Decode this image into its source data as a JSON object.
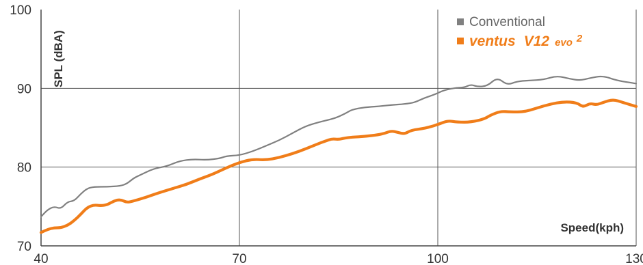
{
  "chart_data": {
    "type": "line",
    "xlabel": "Speed(kph)",
    "ylabel": "SPL (dBA)",
    "xlim": [
      40,
      130
    ],
    "ylim": [
      70,
      100
    ],
    "x_ticks": [
      "40",
      "70",
      "100",
      "130"
    ],
    "y_ticks": [
      "70",
      "80",
      "90",
      "100"
    ],
    "grid": true,
    "legend_position": "top-right",
    "series": [
      {
        "name": "Conventional",
        "color": "#808080",
        "points": [
          [
            40,
            73.7
          ],
          [
            41,
            74.6
          ],
          [
            42,
            75.0
          ],
          [
            43,
            74.7
          ],
          [
            44,
            75.6
          ],
          [
            45,
            75.7
          ],
          [
            46,
            76.6
          ],
          [
            47,
            77.3
          ],
          [
            48,
            77.5
          ],
          [
            50,
            77.5
          ],
          [
            52,
            77.6
          ],
          [
            53,
            77.9
          ],
          [
            54,
            78.6
          ],
          [
            55,
            79.0
          ],
          [
            57,
            79.8
          ],
          [
            59,
            80.1
          ],
          [
            61,
            80.8
          ],
          [
            63,
            81.0
          ],
          [
            65,
            80.9
          ],
          [
            67,
            81.1
          ],
          [
            68,
            81.4
          ],
          [
            70,
            81.5
          ],
          [
            72,
            82.0
          ],
          [
            74,
            82.7
          ],
          [
            76,
            83.4
          ],
          [
            78,
            84.3
          ],
          [
            80,
            85.2
          ],
          [
            82,
            85.7
          ],
          [
            84,
            86.1
          ],
          [
            85,
            86.4
          ],
          [
            86,
            86.8
          ],
          [
            87,
            87.3
          ],
          [
            89,
            87.6
          ],
          [
            91,
            87.7
          ],
          [
            93,
            87.9
          ],
          [
            95,
            88.0
          ],
          [
            96.5,
            88.2
          ],
          [
            98,
            88.8
          ],
          [
            99.5,
            89.2
          ],
          [
            101,
            89.8
          ],
          [
            103,
            90.1
          ],
          [
            104,
            90.1
          ],
          [
            105,
            90.5
          ],
          [
            106,
            90.2
          ],
          [
            107.5,
            90.3
          ],
          [
            109,
            91.4
          ],
          [
            110.5,
            90.4
          ],
          [
            112,
            90.9
          ],
          [
            114,
            91.0
          ],
          [
            116,
            91.1
          ],
          [
            118,
            91.6
          ],
          [
            120,
            91.2
          ],
          [
            121.5,
            91.0
          ],
          [
            123,
            91.3
          ],
          [
            125,
            91.6
          ],
          [
            127,
            91.0
          ],
          [
            130,
            90.6
          ]
        ]
      },
      {
        "name": "ventus V12 evo 2",
        "color": "#f07d19",
        "points": [
          [
            40,
            71.7
          ],
          [
            41,
            72.1
          ],
          [
            42,
            72.3
          ],
          [
            43,
            72.3
          ],
          [
            44,
            72.6
          ],
          [
            45,
            73.2
          ],
          [
            46,
            74.0
          ],
          [
            47,
            74.9
          ],
          [
            48,
            75.2
          ],
          [
            49,
            75.1
          ],
          [
            50,
            75.2
          ],
          [
            51,
            75.7
          ],
          [
            52,
            75.9
          ],
          [
            53,
            75.5
          ],
          [
            54,
            75.7
          ],
          [
            56,
            76.2
          ],
          [
            58,
            76.8
          ],
          [
            60,
            77.3
          ],
          [
            62,
            77.8
          ],
          [
            64,
            78.5
          ],
          [
            66,
            79.1
          ],
          [
            68,
            79.9
          ],
          [
            70,
            80.6
          ],
          [
            72,
            81.0
          ],
          [
            74,
            80.9
          ],
          [
            76,
            81.2
          ],
          [
            78,
            81.7
          ],
          [
            80,
            82.3
          ],
          [
            82,
            83.0
          ],
          [
            83,
            83.3
          ],
          [
            84,
            83.6
          ],
          [
            85,
            83.5
          ],
          [
            86,
            83.7
          ],
          [
            87,
            83.8
          ],
          [
            89,
            83.9
          ],
          [
            91,
            84.1
          ],
          [
            92,
            84.3
          ],
          [
            93,
            84.6
          ],
          [
            94,
            84.4
          ],
          [
            95,
            84.2
          ],
          [
            96,
            84.7
          ],
          [
            98,
            84.9
          ],
          [
            100,
            85.4
          ],
          [
            101.5,
            85.9
          ],
          [
            103,
            85.7
          ],
          [
            105,
            85.7
          ],
          [
            107,
            86.1
          ],
          [
            108,
            86.6
          ],
          [
            109.5,
            87.1
          ],
          [
            111,
            87.0
          ],
          [
            113,
            87.0
          ],
          [
            115,
            87.5
          ],
          [
            117,
            88.0
          ],
          [
            119,
            88.3
          ],
          [
            121,
            88.2
          ],
          [
            122,
            87.6
          ],
          [
            123,
            88.1
          ],
          [
            124,
            87.9
          ],
          [
            125,
            88.2
          ],
          [
            126.5,
            88.6
          ],
          [
            128,
            88.2
          ],
          [
            130,
            87.7
          ]
        ]
      }
    ],
    "legend": {
      "conventional_label": "Conventional",
      "brand_word1": "ventus",
      "brand_word2": "V12",
      "brand_word3": "evo",
      "brand_sup": "2"
    }
  }
}
